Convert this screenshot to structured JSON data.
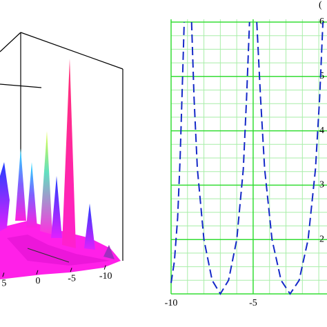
{
  "chart_data": [
    {
      "type": "surface",
      "xticks": [
        5,
        0,
        -5,
        -10
      ],
      "xlim": [
        6,
        -11
      ]
    },
    {
      "type": "line",
      "title": "(",
      "x": [
        -10,
        -9.8,
        -9.6,
        -9.45,
        -9.3,
        -9.2,
        -9.0,
        -8.75,
        -8.6,
        -8.4,
        -8.0,
        -7.5,
        -7.0,
        -6.5,
        -6.0,
        -5.6,
        -5.4,
        -5.22,
        -5.0,
        -4.78,
        -4.55,
        -4.3,
        -3.85,
        -3.3,
        -2.75,
        -2.2,
        -1.65,
        -1.2,
        -0.95,
        -0.75
      ],
      "series": [
        {
          "color": "#1428c8",
          "values": [
            1.2,
            1.6,
            2.4,
            3.5,
            5,
            6,
            null,
            6,
            4.6,
            3.3,
            2.0,
            1.25,
            1.0,
            1.25,
            2.0,
            3.3,
            4.6,
            6,
            null,
            6,
            4.6,
            3.3,
            2.0,
            1.25,
            1.0,
            1.25,
            2.0,
            3.3,
            4.6,
            6
          ]
        }
      ],
      "xlim": [
        -10,
        -0.5
      ],
      "ylim": [
        1,
        6
      ],
      "xticks": [
        -10,
        -5
      ],
      "yticks": [
        2,
        3,
        4,
        5,
        6
      ],
      "xgrid": [
        -9,
        -8,
        -7,
        -6,
        -4,
        -3,
        -2,
        -1
      ],
      "ygrid": [
        1.25,
        1.5,
        1.75,
        2.25,
        2.5,
        2.75,
        3.25,
        3.5,
        3.75,
        4.25,
        4.5,
        4.75,
        5.25,
        5.5,
        5.75
      ],
      "grid": true,
      "grid_color": "#33dd33",
      "minor_grid_color": "#a8eea8"
    }
  ]
}
